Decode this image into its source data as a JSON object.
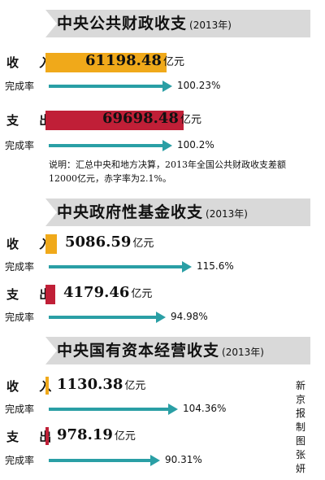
{
  "colors": {
    "income": "#f0a91a",
    "expense": "#c01f37",
    "rate_arrow": "#2a9fa5",
    "banner": "#d9d9d9"
  },
  "labels": {
    "income": "收 入",
    "expense": "支 出",
    "rate": "完成率",
    "unit": "亿元"
  },
  "note": "说明：汇总中央和地方决算，2013年全国公共财政收支差额12000亿元，赤字率为2.1%。",
  "credit": "新京报制图张妍",
  "chart_data": [
    {
      "type": "bar",
      "title": "中央公共财政收支",
      "year": "(2013年)",
      "income": {
        "value": 61198.48,
        "value_text": "61198.48",
        "rate": 100.23,
        "rate_text": "100.23%"
      },
      "expense": {
        "value": 69698.48,
        "value_text": "69698.48",
        "rate": 100.2,
        "rate_text": "100.2%"
      }
    },
    {
      "type": "bar",
      "title": "中央政府性基金收支",
      "year": "(2013年)",
      "income": {
        "value": 5086.59,
        "value_text": "5086.59",
        "rate": 115.6,
        "rate_text": "115.6%"
      },
      "expense": {
        "value": 4179.46,
        "value_text": "4179.46",
        "rate": 94.98,
        "rate_text": "94.98%"
      }
    },
    {
      "type": "bar",
      "title": "中央国有资本经营收支",
      "year": "(2013年)",
      "income": {
        "value": 1130.38,
        "value_text": "1130.38",
        "rate": 104.36,
        "rate_text": "104.36%"
      },
      "expense": {
        "value": 978.19,
        "value_text": "978.19",
        "rate": 90.31,
        "rate_text": "90.31%"
      }
    }
  ]
}
